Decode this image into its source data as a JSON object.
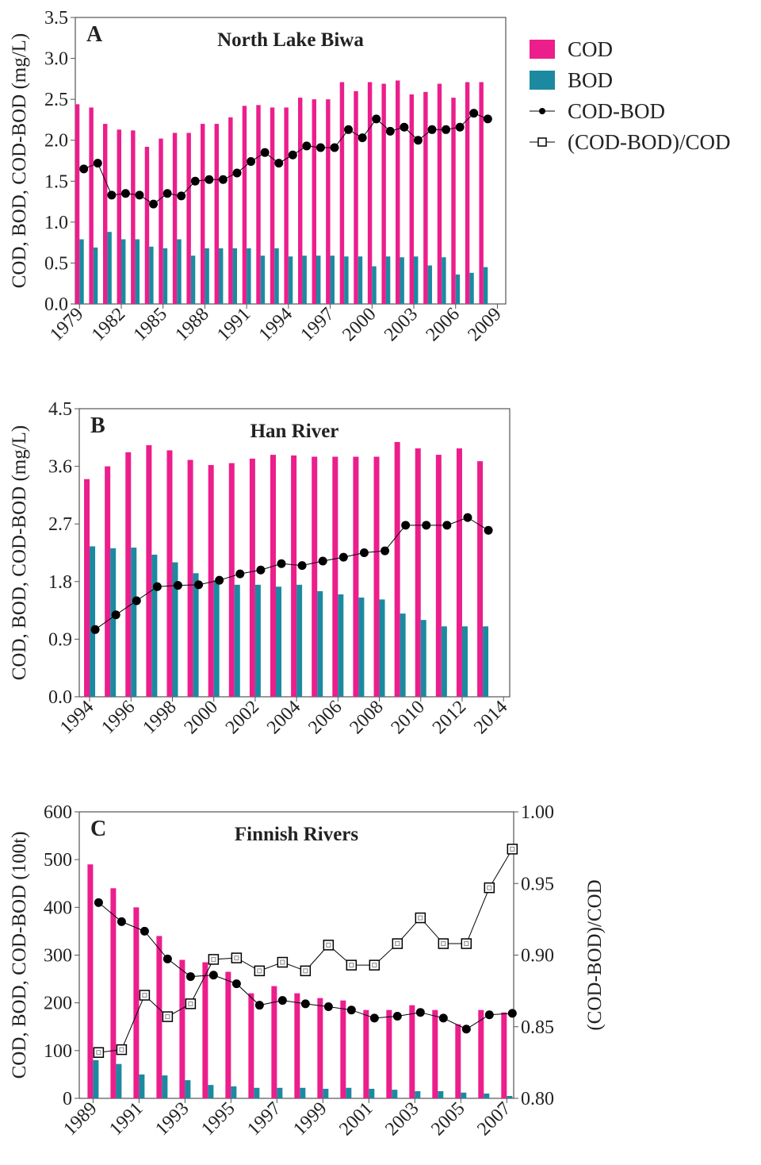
{
  "chart_data": [
    {
      "type": "bar",
      "label": "A",
      "title": "North Lake Biwa",
      "ylabel": "COD, BOD, COD-BOD (mg/L)",
      "x": [
        1979,
        1980,
        1981,
        1982,
        1983,
        1984,
        1985,
        1986,
        1987,
        1988,
        1989,
        1990,
        1991,
        1992,
        1993,
        1994,
        1995,
        1996,
        1997,
        1998,
        1999,
        2000,
        2001,
        2002,
        2003,
        2004,
        2005,
        2006,
        2007,
        2008
      ],
      "xlim": [
        1978.7,
        2009.6
      ],
      "xticks": [
        1979,
        1982,
        1985,
        1988,
        1991,
        1994,
        1997,
        2000,
        2003,
        2006,
        2009
      ],
      "ylim": [
        0,
        3.5
      ],
      "yticks": [
        {
          "value": 0,
          "label": "0.0"
        },
        0.5,
        {
          "value": 1,
          "label": "1.0"
        },
        1.5,
        {
          "value": 2,
          "label": "2.0"
        },
        2.5,
        {
          "value": 3,
          "label": "3.0"
        },
        3.5
      ],
      "legend": "right",
      "series": [
        {
          "name": "COD",
          "type": "bar",
          "color": "#ec1e8c",
          "values": [
            2.44,
            2.4,
            2.2,
            2.13,
            2.12,
            1.92,
            2.02,
            2.09,
            2.09,
            2.2,
            2.2,
            2.28,
            2.42,
            2.43,
            2.4,
            2.4,
            2.52,
            2.5,
            2.5,
            2.71,
            2.6,
            2.71,
            2.69,
            2.73,
            2.56,
            2.59,
            2.69,
            2.52,
            2.71,
            2.71
          ]
        },
        {
          "name": "BOD",
          "type": "bar",
          "color": "#1b8aa0",
          "values": [
            0.79,
            0.69,
            0.88,
            0.79,
            0.79,
            0.7,
            0.68,
            0.79,
            0.59,
            0.68,
            0.68,
            0.68,
            0.68,
            0.59,
            0.68,
            0.58,
            0.59,
            0.59,
            0.59,
            0.58,
            0.58,
            0.46,
            0.58,
            0.57,
            0.58,
            0.47,
            0.57,
            0.36,
            0.38,
            0.45
          ]
        },
        {
          "name": "COD-BOD",
          "type": "line",
          "marker": "circle",
          "color": "#000000",
          "values": [
            1.65,
            1.72,
            1.33,
            1.35,
            1.33,
            1.22,
            1.35,
            1.32,
            1.5,
            1.52,
            1.52,
            1.6,
            1.74,
            1.85,
            1.72,
            1.82,
            1.93,
            1.91,
            1.91,
            2.13,
            2.03,
            2.26,
            2.11,
            2.16,
            2.0,
            2.13,
            2.13,
            2.16,
            2.33,
            2.26
          ]
        }
      ]
    },
    {
      "type": "bar",
      "label": "B",
      "title": "Han River",
      "ylabel": "COD, BOD, COD-BOD (mg/L)",
      "x": [
        1994,
        1995,
        1996,
        1997,
        1998,
        1999,
        2000,
        2001,
        2002,
        2003,
        2004,
        2005,
        2006,
        2007,
        2008,
        2009,
        2010,
        2011,
        2012,
        2013
      ],
      "xlim": [
        1993.5,
        2014.3
      ],
      "xticks": [
        1994,
        1996,
        1998,
        2000,
        2002,
        2004,
        2006,
        2008,
        2010,
        2012,
        2014
      ],
      "ylim": [
        0,
        4.5
      ],
      "yticks": [
        {
          "value": 0,
          "label": "0.0"
        },
        0.9,
        1.8,
        2.7,
        3.6,
        4.5
      ],
      "series": [
        {
          "name": "COD",
          "type": "bar",
          "color": "#ec1e8c",
          "values": [
            3.4,
            3.6,
            3.82,
            3.93,
            3.85,
            3.7,
            3.62,
            3.65,
            3.72,
            3.78,
            3.77,
            3.75,
            3.75,
            3.75,
            3.75,
            3.98,
            3.88,
            3.78,
            3.88,
            3.68
          ]
        },
        {
          "name": "BOD",
          "type": "bar",
          "color": "#1b8aa0",
          "values": [
            2.35,
            2.32,
            2.33,
            2.22,
            2.1,
            1.93,
            1.82,
            1.75,
            1.75,
            1.72,
            1.75,
            1.65,
            1.6,
            1.55,
            1.52,
            1.3,
            1.2,
            1.1,
            1.1,
            1.1
          ]
        },
        {
          "name": "COD-BOD",
          "type": "line",
          "marker": "circle",
          "color": "#000000",
          "values": [
            1.05,
            1.28,
            1.5,
            1.72,
            1.74,
            1.75,
            1.82,
            1.92,
            1.98,
            2.08,
            2.05,
            2.12,
            2.18,
            2.25,
            2.28,
            2.68,
            2.68,
            2.68,
            2.8,
            2.6
          ]
        }
      ]
    },
    {
      "type": "bar",
      "label": "C",
      "title": "Finnish Rivers",
      "ylabel": "COD, BOD, COD-BOD (100t)",
      "y2label": "(COD-BOD)/COD",
      "x": [
        1989,
        1990,
        1991,
        1992,
        1993,
        1994,
        1995,
        1996,
        1997,
        1998,
        1999,
        2000,
        2001,
        2002,
        2003,
        2004,
        2005,
        2006,
        2007
      ],
      "xlim": [
        1988.4,
        2007.3
      ],
      "xticks": [
        1989,
        1991,
        1993,
        1995,
        1997,
        1999,
        2001,
        2003,
        2005,
        2007
      ],
      "ylim": [
        0,
        600
      ],
      "yticks": [
        0,
        100,
        200,
        300,
        400,
        500,
        600
      ],
      "y2lim": [
        0.8,
        1.0
      ],
      "y2ticks": [
        {
          "value": 0.8,
          "label": "0.80"
        },
        0.85,
        {
          "value": 0.9,
          "label": "0.90"
        },
        0.95,
        {
          "value": 1,
          "label": "1.00"
        }
      ],
      "series": [
        {
          "name": "COD",
          "type": "bar",
          "color": "#ec1e8c",
          "values": [
            490,
            440,
            400,
            340,
            290,
            285,
            265,
            220,
            235,
            220,
            210,
            205,
            185,
            185,
            195,
            185,
            155,
            185,
            180
          ]
        },
        {
          "name": "BOD",
          "type": "bar",
          "color": "#1b8aa0",
          "values": [
            80,
            72,
            50,
            48,
            38,
            28,
            25,
            22,
            22,
            22,
            20,
            22,
            20,
            18,
            15,
            15,
            12,
            10,
            5
          ]
        },
        {
          "name": "COD-BOD",
          "type": "line",
          "marker": "circle",
          "color": "#000000",
          "values": [
            410,
            370,
            350,
            292,
            255,
            258,
            240,
            195,
            205,
            198,
            192,
            185,
            168,
            172,
            180,
            168,
            145,
            175,
            178
          ]
        },
        {
          "name": "(COD-BOD)/COD",
          "type": "line",
          "marker": "square",
          "axis": "y2",
          "color": "#000000",
          "values": [
            0.832,
            0.834,
            0.872,
            0.857,
            0.866,
            0.897,
            0.898,
            0.889,
            0.895,
            0.889,
            0.907,
            0.893,
            0.893,
            0.908,
            0.926,
            0.908,
            0.908,
            0.947,
            0.974
          ]
        }
      ]
    }
  ]
}
